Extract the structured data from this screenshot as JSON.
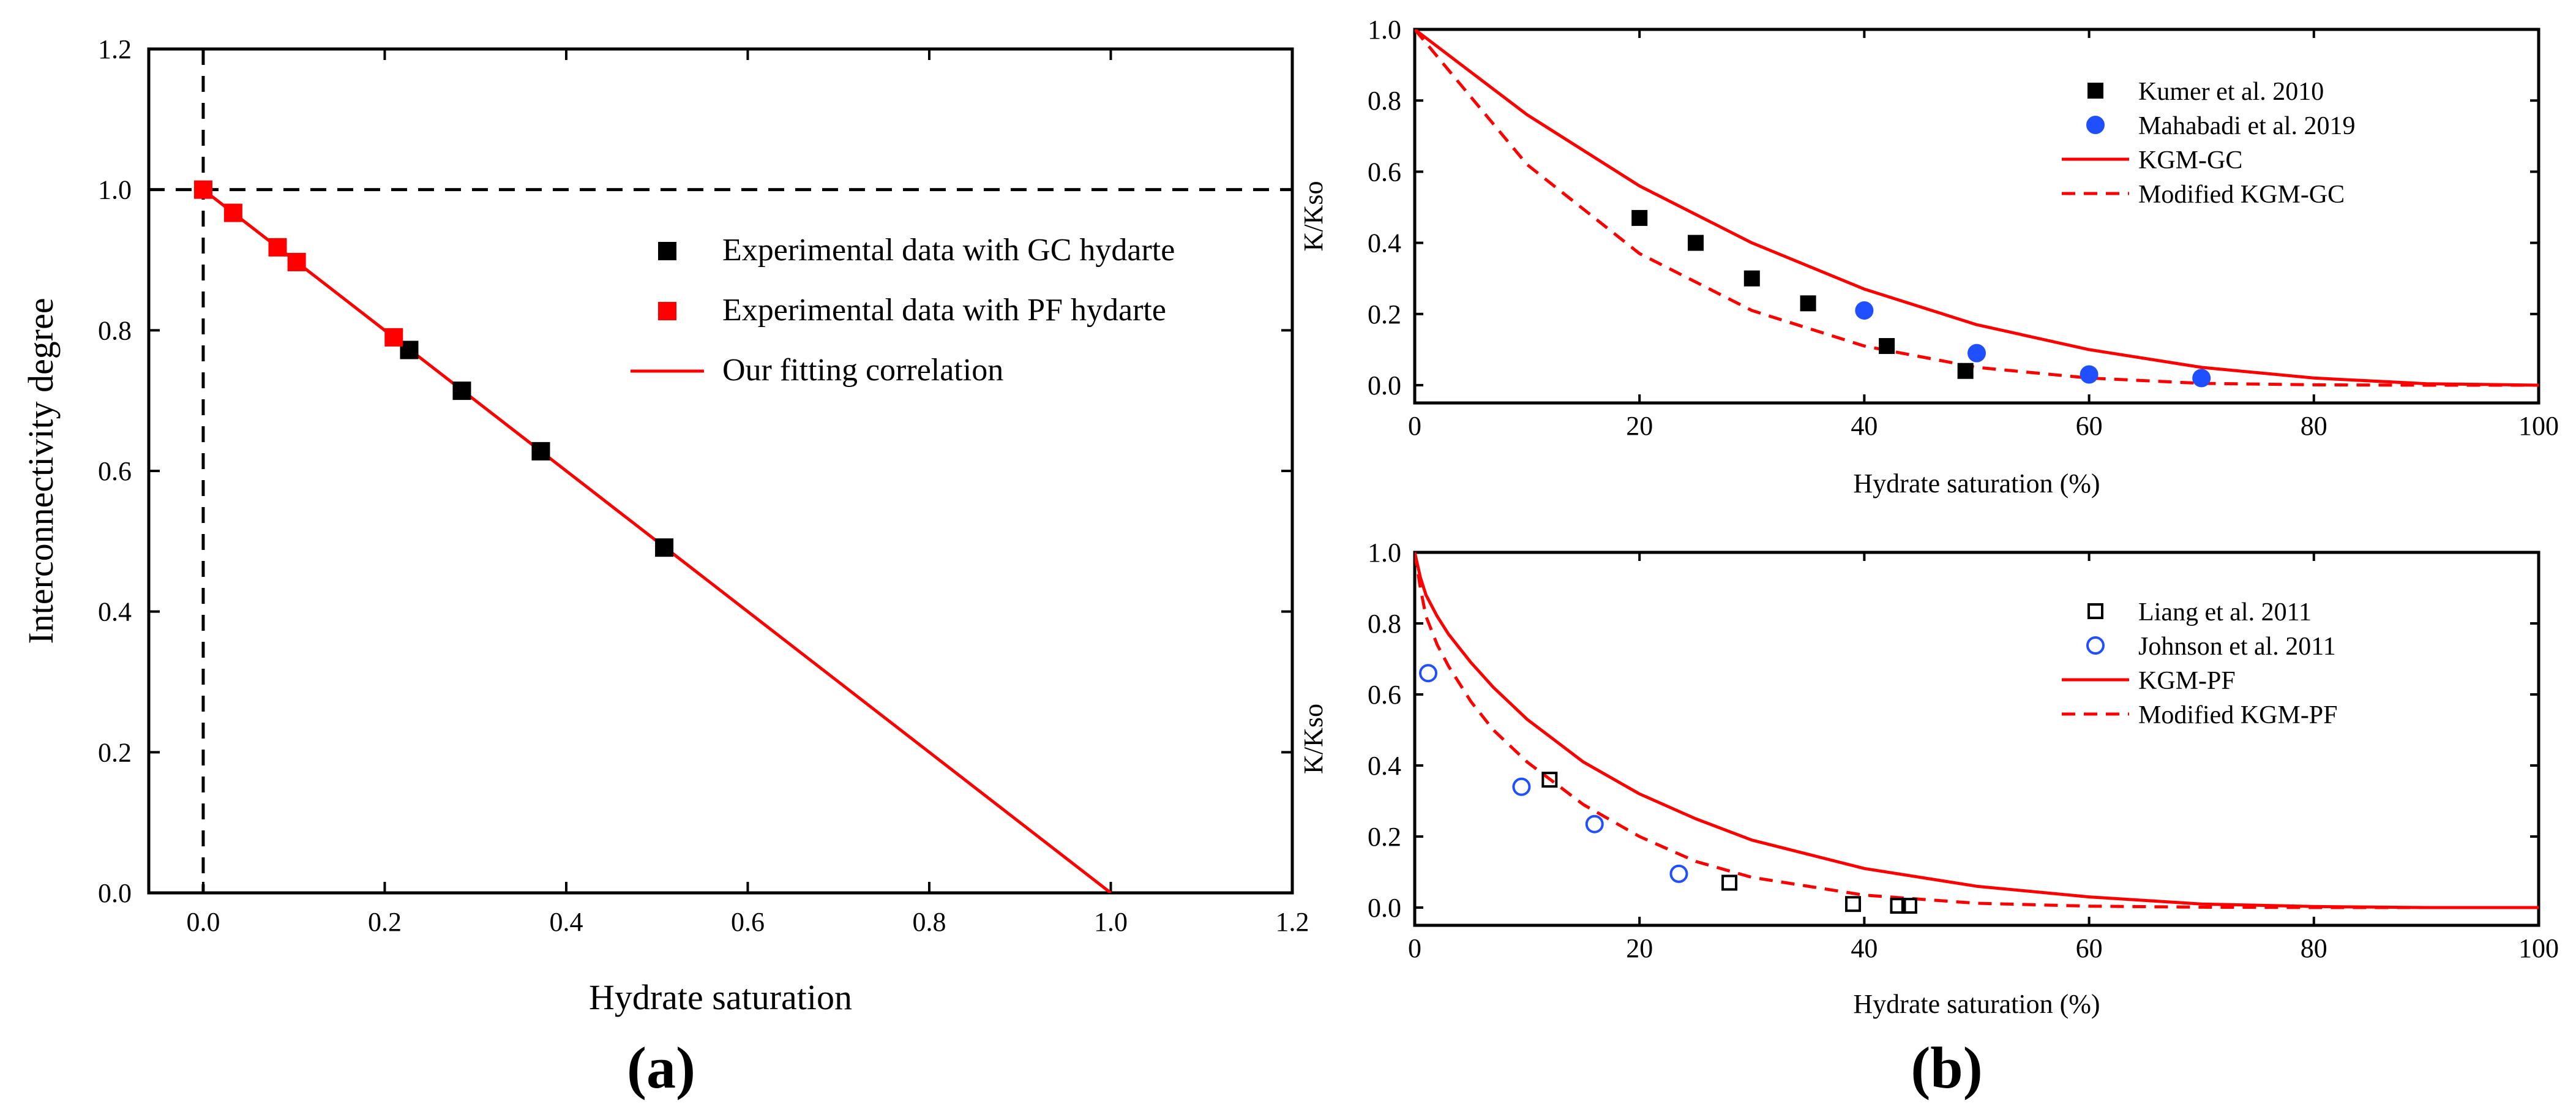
{
  "chart_data": [
    {
      "id": "a",
      "type": "scatter",
      "panel_label": "(a)",
      "xlabel": "Hydrate saturation",
      "ylabel": "Interconnectivity degree",
      "xlim": [
        -0.06,
        1.2
      ],
      "ylim": [
        0.0,
        1.2
      ],
      "xticks": [
        "0.0",
        "0.2",
        "0.4",
        "0.6",
        "0.8",
        "1.0",
        "1.2"
      ],
      "yticks": [
        "0.0",
        "0.2",
        "0.4",
        "0.6",
        "0.8",
        "1.0",
        "1.2"
      ],
      "reference_lines": {
        "x": 0.0,
        "y": 1.0
      },
      "legend_position": "center-right",
      "series": [
        {
          "name": "Experimental data with GC hydarte",
          "color": "#000000",
          "marker": "square-filled",
          "x": [
            0.227,
            0.285,
            0.372,
            0.508
          ],
          "y": [
            0.772,
            0.714,
            0.628,
            0.491
          ]
        },
        {
          "name": "Experimental data with PF hydarte",
          "color": "#ff0000",
          "marker": "square-filled",
          "x": [
            0.0,
            0.033,
            0.082,
            0.103,
            0.21
          ],
          "y": [
            1.0,
            0.967,
            0.918,
            0.897,
            0.79
          ]
        },
        {
          "name": "Our fitting correlation",
          "color": "#ff0000",
          "marker": "line",
          "x": [
            0.0,
            1.0
          ],
          "y": [
            1.0,
            0.0
          ]
        }
      ]
    },
    {
      "id": "b-top",
      "type": "scatter",
      "xlabel": "Hydrate saturation (%)",
      "ylabel": "K/Kso",
      "xlim": [
        0,
        100
      ],
      "ylim": [
        -0.05,
        1.0
      ],
      "xticks": [
        "0",
        "20",
        "40",
        "60",
        "80",
        "100"
      ],
      "yticks": [
        "0.0",
        "0.2",
        "0.4",
        "0.6",
        "0.8",
        "1.0"
      ],
      "legend_position": "top-right",
      "series": [
        {
          "name": "Kumer et al. 2010",
          "color": "#000000",
          "marker": "square-filled",
          "x": [
            20,
            25,
            30,
            35,
            42,
            49
          ],
          "y": [
            0.47,
            0.4,
            0.3,
            0.23,
            0.11,
            0.04
          ]
        },
        {
          "name": "Mahabadi et al. 2019",
          "color": "#1f4fff",
          "marker": "circle-filled",
          "x": [
            40,
            50,
            60,
            70
          ],
          "y": [
            0.21,
            0.09,
            0.03,
            0.02
          ]
        },
        {
          "name": "KGM-GC",
          "color": "#ff0000",
          "marker": "line",
          "x": [
            0,
            10,
            20,
            30,
            40,
            50,
            60,
            70,
            80,
            90,
            100
          ],
          "y": [
            1.0,
            0.76,
            0.56,
            0.4,
            0.27,
            0.17,
            0.1,
            0.05,
            0.02,
            0.004,
            0.0
          ]
        },
        {
          "name": "Modified KGM-GC",
          "color": "#ff0000",
          "marker": "dashed-line",
          "x": [
            0,
            10,
            20,
            30,
            40,
            50,
            60,
            70,
            80,
            90,
            100
          ],
          "y": [
            1.0,
            0.62,
            0.37,
            0.21,
            0.11,
            0.05,
            0.02,
            0.005,
            0.001,
            0.0,
            0.0
          ]
        }
      ]
    },
    {
      "id": "b-bottom",
      "type": "scatter",
      "panel_label": "(b)",
      "xlabel": "Hydrate saturation (%)",
      "ylabel": "K/Kso",
      "xlim": [
        0,
        100
      ],
      "ylim": [
        -0.05,
        1.0
      ],
      "xticks": [
        "0",
        "20",
        "40",
        "60",
        "80",
        "100"
      ],
      "yticks": [
        "0.0",
        "0.2",
        "0.4",
        "0.6",
        "0.8",
        "1.0"
      ],
      "legend_position": "top-right",
      "series": [
        {
          "name": "Liang et al. 2011",
          "color": "#000000",
          "marker": "square-open",
          "x": [
            12,
            28,
            39,
            43,
            44
          ],
          "y": [
            0.36,
            0.07,
            0.01,
            0.005,
            0.005
          ]
        },
        {
          "name": "Johnson et al. 2011",
          "color": "#1f4fff",
          "marker": "circle-open",
          "x": [
            1.2,
            9.5,
            16,
            23.5
          ],
          "y": [
            0.66,
            0.34,
            0.235,
            0.095
          ]
        },
        {
          "name": "KGM-PF",
          "color": "#ff0000",
          "marker": "line",
          "x": [
            0,
            0.5,
            1,
            2,
            3,
            5,
            7,
            10,
            15,
            20,
            25,
            30,
            40,
            50,
            60,
            70,
            80,
            90,
            100
          ],
          "y": [
            1.0,
            0.93,
            0.88,
            0.82,
            0.77,
            0.69,
            0.62,
            0.53,
            0.41,
            0.32,
            0.25,
            0.19,
            0.11,
            0.06,
            0.03,
            0.01,
            0.003,
            0.0,
            0.0
          ]
        },
        {
          "name": "Modified KGM-PF",
          "color": "#ff0000",
          "marker": "dashed-line",
          "x": [
            0,
            0.5,
            1,
            2,
            3,
            5,
            7,
            10,
            15,
            20,
            25,
            30,
            40,
            50,
            60,
            70,
            80,
            90,
            100
          ],
          "y": [
            1.0,
            0.9,
            0.82,
            0.74,
            0.68,
            0.58,
            0.5,
            0.41,
            0.29,
            0.2,
            0.13,
            0.085,
            0.035,
            0.012,
            0.004,
            0.001,
            0.0,
            0.0,
            0.0
          ]
        }
      ]
    }
  ]
}
